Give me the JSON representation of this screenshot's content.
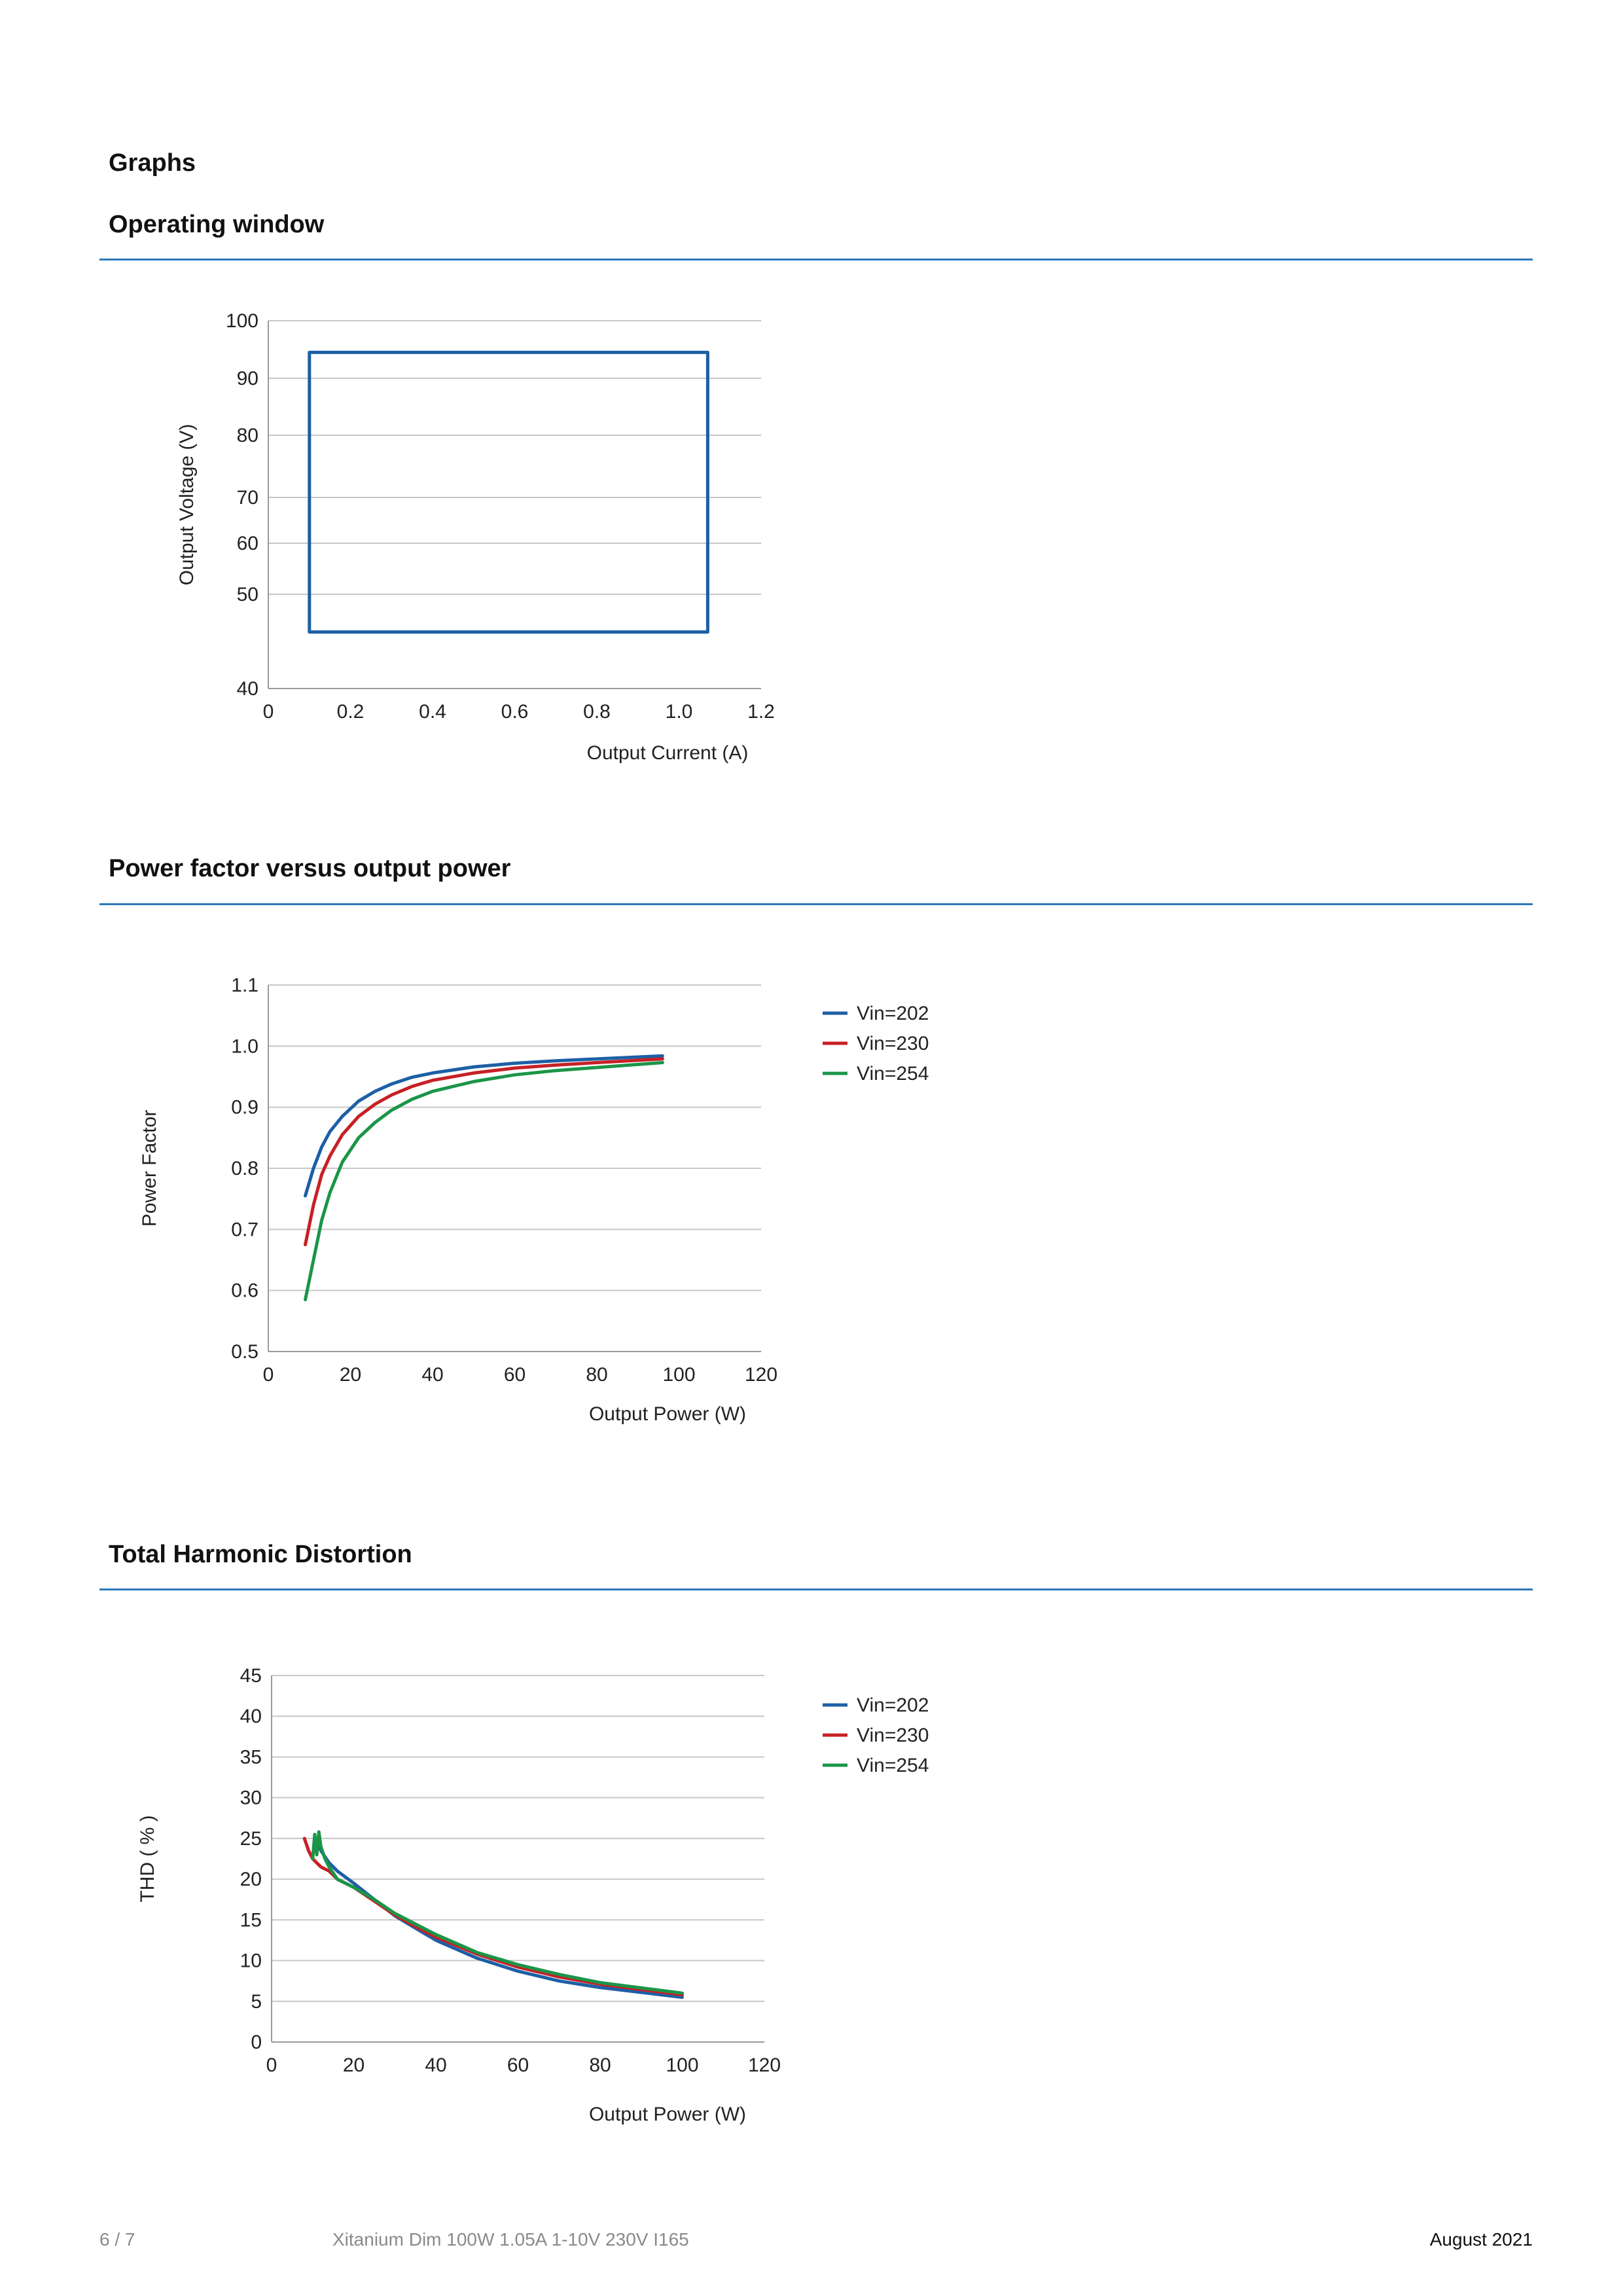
{
  "section_title": "Graphs",
  "charts": [
    {
      "heading": "Operating window",
      "chart_data": {
        "type": "line",
        "xlabel": "Output Current (A)",
        "ylabel": "Output Voltage (V)",
        "xlim": [
          0,
          1.2
        ],
        "ylim": [
          40,
          100
        ],
        "xticks": [
          0,
          0.2,
          0.4,
          0.6,
          0.8,
          1.0,
          1.2
        ],
        "xtick_labels": [
          "0",
          "0.2",
          "0.4",
          "0.6",
          "0.8",
          "1.0",
          "1.2"
        ],
        "yticks": [
          100,
          90,
          80,
          70,
          60,
          50,
          40
        ],
        "ytick_labels": [
          "100",
          "90",
          "80",
          "70",
          "60",
          "50",
          "40"
        ],
        "grid": true,
        "color": "#1d5fa5",
        "series": [
          {
            "x": [
              0.1,
              1.07,
              1.07,
              0.1,
              0.1
            ],
            "y": [
              94.5,
              94.5,
              46,
              46,
              94.5
            ]
          }
        ]
      }
    },
    {
      "heading": "Power factor versus output power",
      "chart_data": {
        "type": "line",
        "xlabel": "Output Power (W)",
        "ylabel": "Power Factor",
        "xlim": [
          0,
          120
        ],
        "ylim": [
          0.5,
          1.1
        ],
        "xticks": [
          0,
          20,
          40,
          60,
          80,
          100,
          120
        ],
        "xtick_labels": [
          "0",
          "20",
          "40",
          "60",
          "80",
          "100",
          "120"
        ],
        "yticks": [
          1.1,
          1.0,
          0.9,
          0.8,
          0.7,
          0.6,
          0.5
        ],
        "ytick_labels": [
          "1.1",
          "1.0",
          "0.9",
          "0.8",
          "0.7",
          "0.6",
          "0.5"
        ],
        "grid": true,
        "legend": "right",
        "series": [
          {
            "name": "Vin=202",
            "color": "#1d5fa5",
            "x": [
              9,
              11,
              13,
              15,
              18,
              22,
              26,
              30,
              35,
              40,
              50,
              60,
              70,
              80,
              96
            ],
            "y": [
              0.755,
              0.8,
              0.835,
              0.86,
              0.885,
              0.91,
              0.926,
              0.938,
              0.949,
              0.956,
              0.966,
              0.972,
              0.976,
              0.979,
              0.984
            ]
          },
          {
            "name": "Vin=230",
            "color": "#c62026",
            "x": [
              9,
              11,
              13,
              15,
              18,
              22,
              26,
              30,
              35,
              40,
              50,
              60,
              70,
              80,
              96
            ],
            "y": [
              0.675,
              0.74,
              0.79,
              0.82,
              0.855,
              0.885,
              0.905,
              0.92,
              0.934,
              0.944,
              0.956,
              0.964,
              0.969,
              0.973,
              0.979
            ]
          },
          {
            "name": "Vin=254",
            "color": "#1b9548",
            "x": [
              9,
              11,
              13,
              15,
              18,
              22,
              26,
              30,
              35,
              40,
              50,
              60,
              70,
              80,
              96
            ],
            "y": [
              0.585,
              0.65,
              0.715,
              0.76,
              0.81,
              0.85,
              0.875,
              0.895,
              0.913,
              0.926,
              0.942,
              0.953,
              0.96,
              0.965,
              0.973
            ]
          }
        ]
      }
    },
    {
      "heading": "Total Harmonic Distortion",
      "chart_data": {
        "type": "line",
        "xlabel": "Output Power (W)",
        "ylabel": "THD ( % )",
        "xlim": [
          0,
          120
        ],
        "ylim": [
          0,
          45
        ],
        "xticks": [
          0,
          20,
          40,
          60,
          80,
          100,
          120
        ],
        "xtick_labels": [
          "0",
          "20",
          "40",
          "60",
          "80",
          "100",
          "120"
        ],
        "yticks": [
          45,
          40,
          35,
          30,
          25,
          20,
          15,
          10,
          5,
          0
        ],
        "ytick_labels": [
          "45",
          "40",
          "35",
          "30",
          "25",
          "20",
          "15",
          "10",
          "5",
          "0"
        ],
        "grid": true,
        "legend": "right",
        "series": [
          {
            "name": "Vin=202",
            "color": "#1d5fa5",
            "x": [
              11,
              12,
              14,
              16,
              20,
              25,
              30,
              35,
              40,
              50,
              60,
              70,
              80,
              100
            ],
            "y": [
              25,
              23.5,
              22,
              21,
              19.5,
              17.5,
              15.5,
              14,
              12.5,
              10.3,
              8.7,
              7.5,
              6.7,
              5.5
            ]
          },
          {
            "name": "Vin=230",
            "color": "#c62026",
            "x": [
              8,
              9,
              10,
              12,
              14,
              16,
              20,
              25,
              30,
              35,
              40,
              50,
              60,
              70,
              80,
              100
            ],
            "y": [
              25,
              23.5,
              22.5,
              21.5,
              21,
              20,
              19,
              17.3,
              15.6,
              14.2,
              12.9,
              10.8,
              9.2,
              8,
              7.1,
              5.8
            ]
          },
          {
            "name": "Vin=254",
            "color": "#1b9548",
            "x": [
              10,
              10.5,
              11,
              11.5,
              12,
              13,
              14,
              16,
              20,
              25,
              30,
              35,
              40,
              50,
              60,
              70,
              80,
              100
            ],
            "y": [
              22.5,
              25.5,
              23,
              25.8,
              24,
              22.5,
              21.5,
              20,
              19,
              17.5,
              15.8,
              14.5,
              13.2,
              11,
              9.5,
              8.3,
              7.3,
              6
            ]
          }
        ]
      }
    }
  ],
  "footer": {
    "page": "6 / 7",
    "product": "Xitanium Dim 100W 1.05A 1-10V 230V I165",
    "date": "August 2021"
  }
}
